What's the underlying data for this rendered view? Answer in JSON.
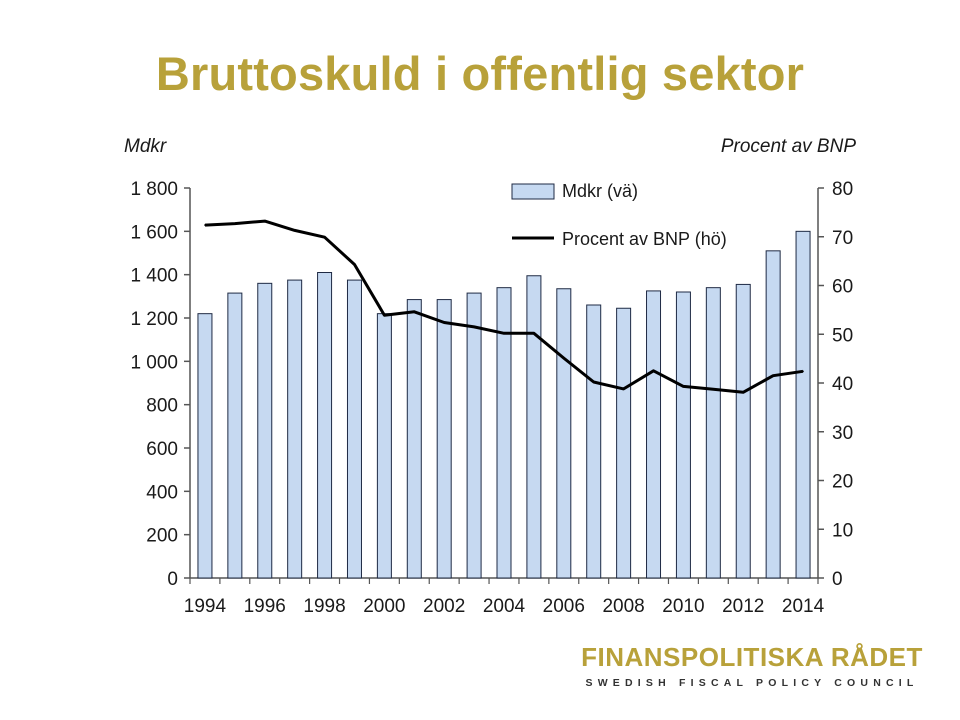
{
  "page": {
    "title": "Bruttoskuld i offentlig sektor",
    "brand_name": "FINANSPOLITISKA RÅDET",
    "brand_subtitle": "SWEDISH FISCAL POLICY COUNCIL",
    "colors": {
      "title": "#B8A13A",
      "bar_fill": "#C6D9F1",
      "bar_stroke": "#1F2A44",
      "line": "#000000"
    }
  },
  "chart_data": {
    "type": "bar",
    "title": "",
    "y_left_unit": "Mdkr",
    "y_right_unit": "Procent av BNP",
    "ylim_left": [
      0,
      1800
    ],
    "ylim_right": [
      0,
      80
    ],
    "yticks_left": [
      "1 800",
      "1 600",
      "1 400",
      "1 200",
      "1 000",
      "800",
      "600",
      "400",
      "200",
      "0"
    ],
    "yticks_right": [
      "80",
      "70",
      "60",
      "50",
      "40",
      "30",
      "20",
      "10",
      "0"
    ],
    "xtick_labels": [
      "1994",
      "1996",
      "1998",
      "2000",
      "2002",
      "2004",
      "2006",
      "2008",
      "2010",
      "2012",
      "2014"
    ],
    "categories": [
      "1994",
      "1995",
      "1996",
      "1997",
      "1998",
      "1999",
      "2000",
      "2001",
      "2002",
      "2003",
      "2004",
      "2005",
      "2006",
      "2007",
      "2008",
      "2009",
      "2010",
      "2011",
      "2012",
      "2013",
      "2014"
    ],
    "legend": {
      "placement": "top-right",
      "bar_label": "Mdkr (vä)",
      "line_label": "Procent av BNP (hö)"
    },
    "series": [
      {
        "name": "Mdkr (vä)",
        "kind": "bar",
        "axis": "left",
        "values": [
          1220,
          1315,
          1360,
          1375,
          1410,
          1375,
          1220,
          1285,
          1285,
          1315,
          1340,
          1395,
          1335,
          1260,
          1245,
          1325,
          1320,
          1340,
          1355,
          1510,
          1600
        ]
      },
      {
        "name": "Procent av BNP (hö)",
        "kind": "line",
        "axis": "right",
        "values": [
          72.4,
          72.7,
          73.2,
          71.3,
          69.9,
          64.3,
          53.9,
          54.6,
          52.4,
          51.5,
          50.2,
          50.2,
          45.1,
          40.2,
          38.8,
          42.5,
          39.3,
          38.7,
          38.1,
          41.5,
          42.4
        ]
      }
    ]
  }
}
